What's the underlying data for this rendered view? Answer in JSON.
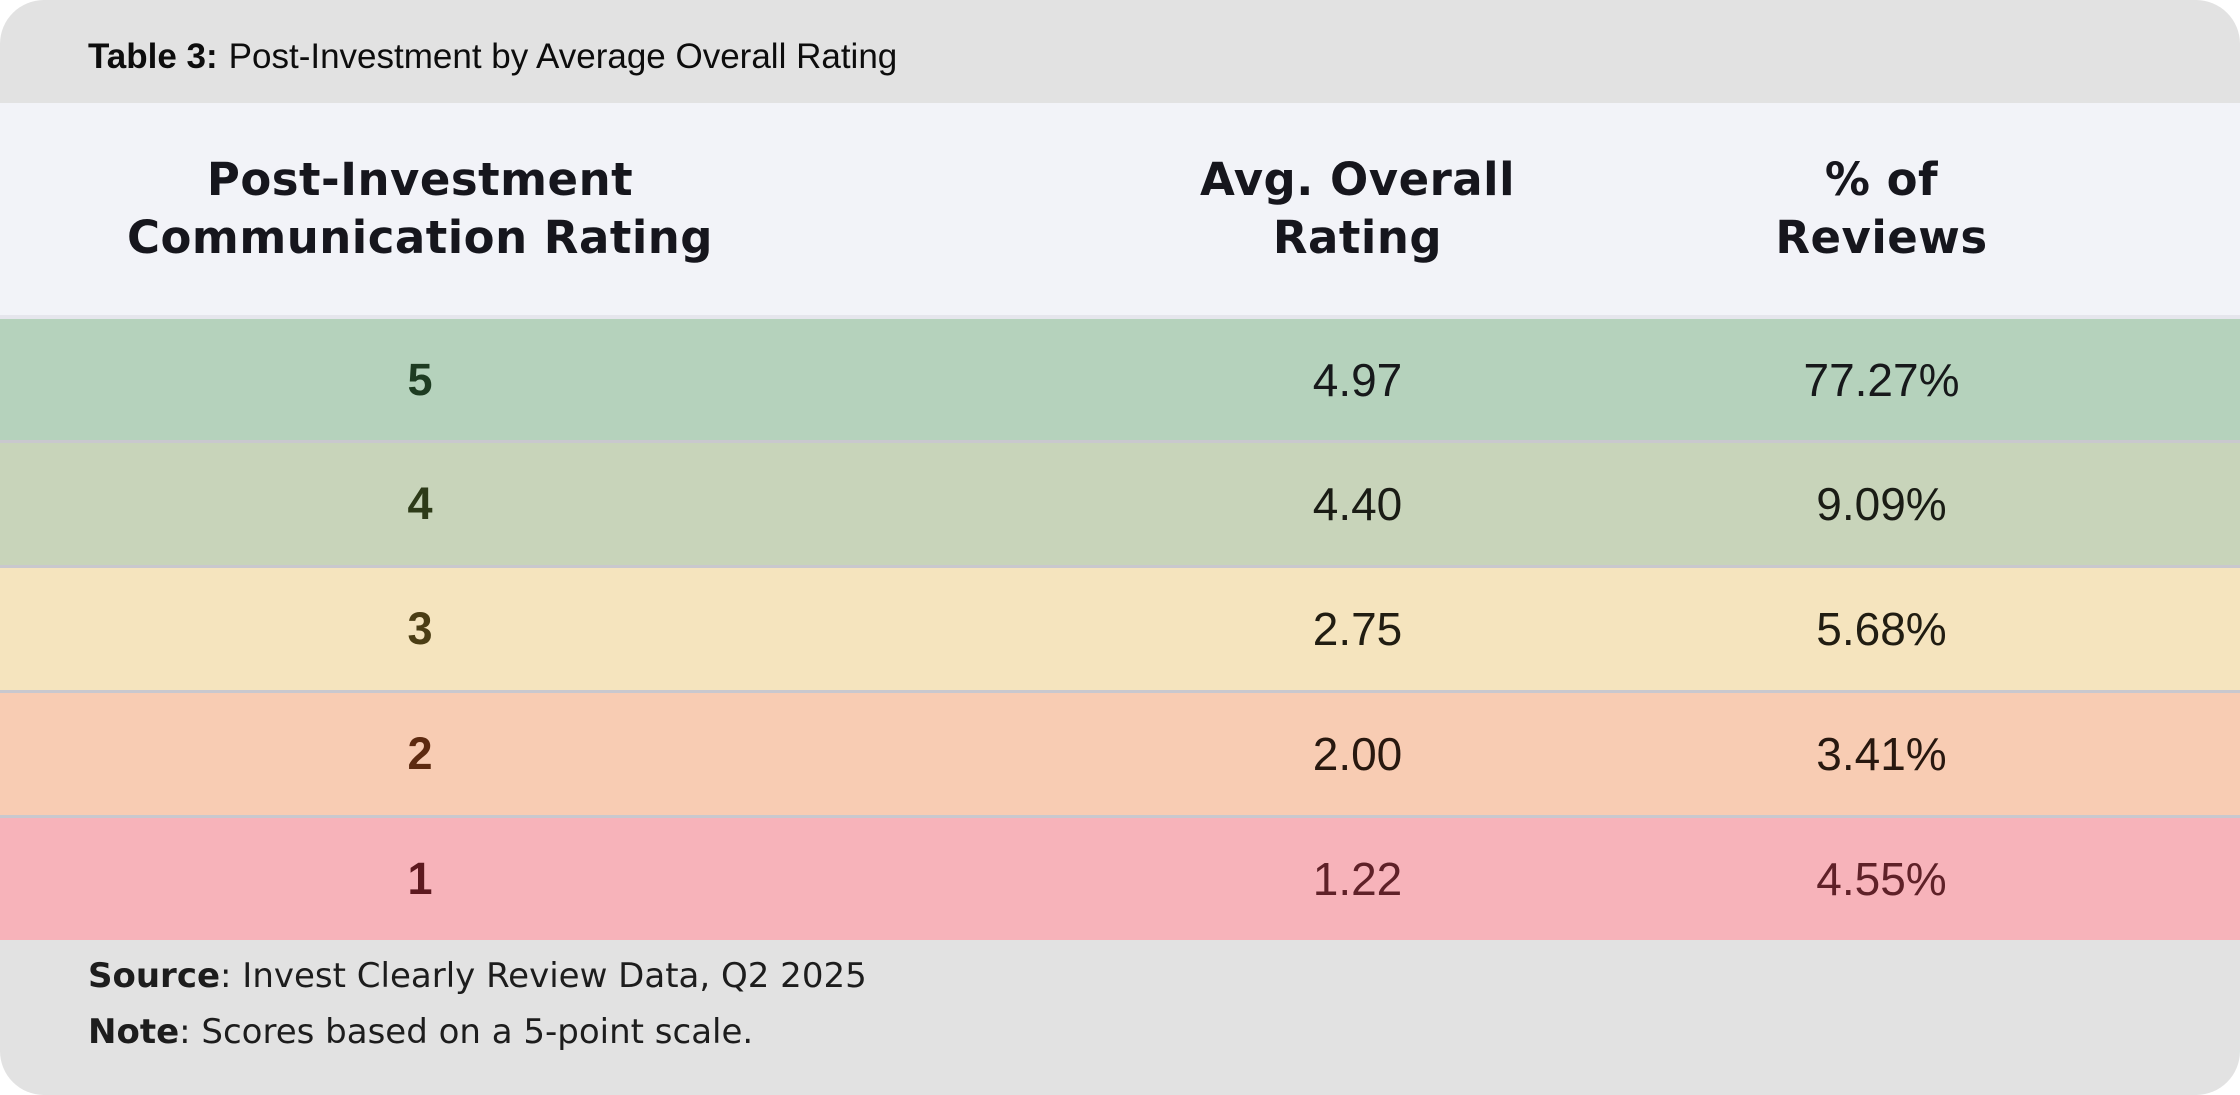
{
  "title": {
    "prefix": "Table 3:",
    "rest": "Post-Investment by Average Overall Rating"
  },
  "table": {
    "columns": [
      {
        "label": "Post-Investment\nCommunication Rating"
      },
      {
        "label": "Avg. Overall\nRating"
      },
      {
        "label": "% of\nReviews"
      }
    ],
    "rows": [
      {
        "rating": "5",
        "avg": "4.97",
        "pct": "77.27%",
        "colors": {
          "bg": "#b5d2bc",
          "rating": "#1e3c22",
          "value": "#17191b"
        }
      },
      {
        "rating": "4",
        "avg": "4.40",
        "pct": "9.09%",
        "colors": {
          "bg": "#c8d4ba",
          "rating": "#2d3a18",
          "value": "#1a1c15"
        }
      },
      {
        "rating": "3",
        "avg": "2.75",
        "pct": "5.68%",
        "colors": {
          "bg": "#f5e4be",
          "rating": "#4b3d14",
          "value": "#211d12"
        }
      },
      {
        "rating": "2",
        "avg": "2.00",
        "pct": "3.41%",
        "colors": {
          "bg": "#f8ccb3",
          "rating": "#5d2a10",
          "value": "#28180f"
        }
      },
      {
        "rating": "1",
        "avg": "1.22",
        "pct": "4.55%",
        "colors": {
          "bg": "#f7b3ba",
          "rating": "#5d1a20",
          "value": "#5f2128"
        }
      }
    ]
  },
  "footer": {
    "source_label": "Source",
    "source_text": ": Invest Clearly Review Data, Q2 2025",
    "note_label": "Note",
    "note_text": ": Scores based on a 5-point scale."
  },
  "theme": {
    "titlebar_bg": "#e2e2e2",
    "header_bg": "#f2f3f8",
    "footer_bg": "#e2e2e2",
    "separator": "#c9c8ce"
  }
}
